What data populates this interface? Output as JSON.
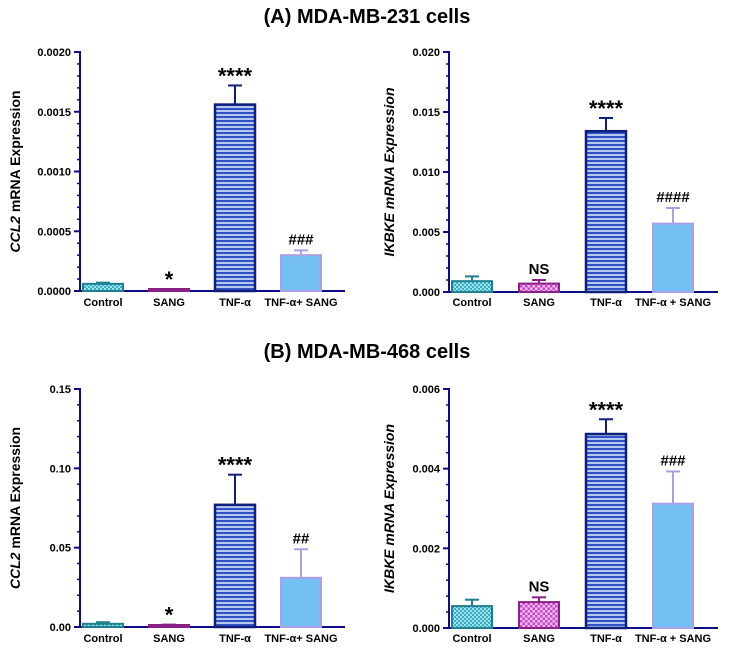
{
  "titles": {
    "a": "(A) MDA-MB-231 cells",
    "b": "(B) MDA-MB-468 cells"
  },
  "colors": {
    "control_fill": "#3aaec3",
    "control_stroke": "#1f7f8f",
    "sang_fill": "#d66bd4",
    "sang_stroke": "#8a1f86",
    "tnf_fill": "#6d8fe0",
    "tnf_stroke": "#0f1f7a",
    "combo_fill": "#74bff4",
    "combo_stroke": "#a9a0e6",
    "axis": "#0d0d8a"
  },
  "chart_data": [
    {
      "id": "a-ccl2",
      "type": "bar",
      "title": "",
      "ylabel_italic": "CCL2",
      "ylabel_rest": " mRNA Expression",
      "ylabel_all_italic": false,
      "categories": [
        "Control",
        "SANG",
        "TNF-α",
        "TNF-α+ SANG"
      ],
      "values": [
        6e-05,
        1e-05,
        0.00156,
        0.0003
      ],
      "errors": [
        1e-05,
        5e-06,
        0.00016,
        4e-05
      ],
      "annotations": [
        "",
        "*",
        "****",
        "###"
      ],
      "ylim": [
        0,
        0.002
      ],
      "yticks": [
        "0.0000",
        "0.0005",
        "0.0010",
        "0.0015",
        "0.0020"
      ],
      "grid": false
    },
    {
      "id": "a-ikbke",
      "type": "bar",
      "title": "",
      "ylabel_italic": "IKBKE mRNA Expression",
      "ylabel_rest": "",
      "ylabel_all_italic": true,
      "categories": [
        "Control",
        "SANG",
        "TNF-α",
        "TNF-α + SANG"
      ],
      "values": [
        0.0009,
        0.0007,
        0.0134,
        0.0057
      ],
      "errors": [
        0.0004,
        0.0003,
        0.0011,
        0.0013
      ],
      "annotations": [
        "",
        "NS",
        "****",
        "####"
      ],
      "ylim": [
        0,
        0.02
      ],
      "yticks": [
        "0.000",
        "0.005",
        "0.010",
        "0.015",
        "0.020"
      ],
      "grid": false
    },
    {
      "id": "b-ccl2",
      "type": "bar",
      "title": "",
      "ylabel_italic": "CCL2",
      "ylabel_rest": " mRNA Expression",
      "ylabel_all_italic": false,
      "categories": [
        "Control",
        "SANG",
        "TNF-α",
        "TNF-α+ SANG"
      ],
      "values": [
        0.002,
        0.001,
        0.077,
        0.031
      ],
      "errors": [
        0.001,
        0.0005,
        0.019,
        0.018
      ],
      "annotations": [
        "",
        "*",
        "****",
        "##"
      ],
      "ylim": [
        0,
        0.15
      ],
      "yticks": [
        "0.00",
        "0.05",
        "0.10",
        "0.15"
      ],
      "grid": false
    },
    {
      "id": "b-ikbke",
      "type": "bar",
      "title": "",
      "ylabel_italic": "IKBKE mRNA Expression",
      "ylabel_rest": "",
      "ylabel_all_italic": true,
      "categories": [
        "Control",
        "SANG",
        "TNF-α",
        "TNF-α + SANG"
      ],
      "values": [
        0.00055,
        0.00065,
        0.00487,
        0.00312
      ],
      "errors": [
        0.00016,
        0.00012,
        0.00037,
        0.00081
      ],
      "annotations": [
        "",
        "NS",
        "****",
        "###"
      ],
      "ylim": [
        0,
        0.006
      ],
      "yticks": [
        "0.000",
        "0.002",
        "0.004",
        "0.006"
      ],
      "grid": false
    }
  ]
}
